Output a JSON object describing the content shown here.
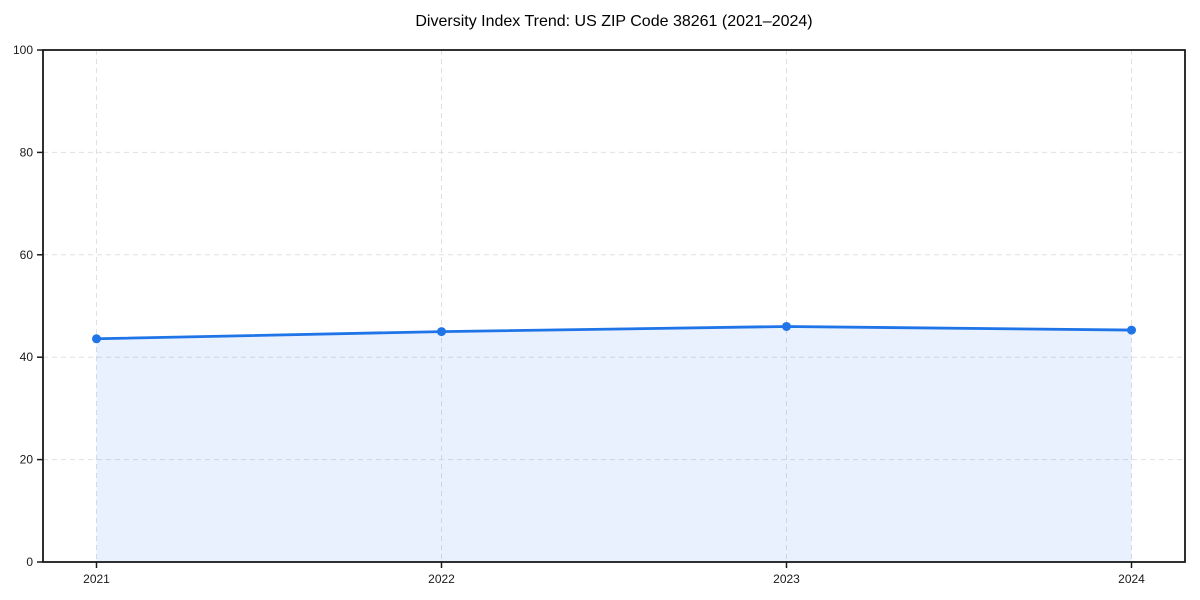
{
  "colors": {
    "line": "#1f74e8",
    "fill": "rgba(31, 116, 232, 0.10)",
    "grid": "#e0e0e0",
    "axis": "#1a1a1a",
    "tick_label": "#1a1a1a",
    "background": "#ffffff"
  },
  "chart_data": {
    "type": "line",
    "title": "Diversity Index Trend: US ZIP Code 38261 (2021–2024)",
    "series_name": "Diversity Index",
    "categories": [
      "2021",
      "2022",
      "2023",
      "2024"
    ],
    "values": [
      43.6,
      45.0,
      46.0,
      45.3
    ],
    "xlabel": "",
    "ylabel": "",
    "ylim": [
      0,
      100
    ],
    "yticks": [
      0,
      20,
      40,
      60,
      80,
      100
    ],
    "grid": true,
    "grid_style": "dashed",
    "area_fill": true,
    "markers": true,
    "legend": "none",
    "frame": "full-box"
  }
}
